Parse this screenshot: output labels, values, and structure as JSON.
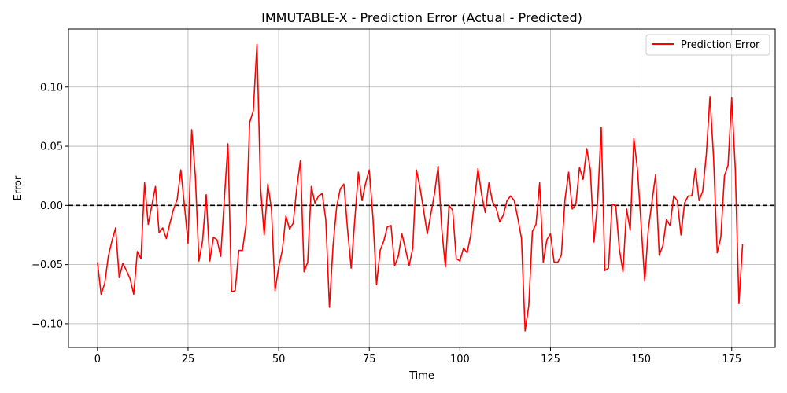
{
  "chart_data": {
    "type": "line",
    "title": "IMMUTABLE-X - Prediction Error (Actual - Predicted)",
    "xlabel": "Time",
    "ylabel": "Error",
    "xlim": [
      -8,
      187
    ],
    "ylim": [
      -0.12,
      0.149
    ],
    "x_ticks": [
      0,
      25,
      50,
      75,
      100,
      125,
      150,
      175
    ],
    "y_ticks": [
      -0.1,
      -0.05,
      0.0,
      0.05,
      0.1
    ],
    "x_tick_labels": [
      "0",
      "25",
      "50",
      "75",
      "100",
      "125",
      "150",
      "175"
    ],
    "y_tick_labels": [
      "−0.10",
      "−0.05",
      "0.00",
      "0.05",
      "0.10"
    ],
    "grid": true,
    "legend": {
      "position": "top-right"
    },
    "reference_line": {
      "y": 0,
      "style": "dashed",
      "color": "#000000"
    },
    "series": [
      {
        "name": "Prediction Error",
        "color": "#ff0000",
        "x_start": 0,
        "values": [
          -0.048,
          -0.075,
          -0.066,
          -0.043,
          -0.03,
          -0.019,
          -0.061,
          -0.049,
          -0.055,
          -0.062,
          -0.075,
          -0.039,
          -0.045,
          0.019,
          -0.016,
          0.0,
          0.016,
          -0.023,
          -0.019,
          -0.028,
          -0.015,
          -0.003,
          0.005,
          0.03,
          0.0,
          -0.032,
          0.064,
          0.025,
          -0.047,
          -0.03,
          0.009,
          -0.047,
          -0.027,
          -0.029,
          -0.043,
          0.005,
          0.052,
          -0.073,
          -0.072,
          -0.038,
          -0.038,
          -0.016,
          0.07,
          0.08,
          0.136,
          0.015,
          -0.025,
          0.018,
          -0.003,
          -0.072,
          -0.052,
          -0.038,
          -0.009,
          -0.02,
          -0.015,
          0.015,
          0.038,
          -0.056,
          -0.048,
          0.016,
          0.002,
          0.008,
          0.01,
          -0.012,
          -0.086,
          -0.034,
          -0.001,
          0.014,
          0.018,
          -0.02,
          -0.053,
          -0.012,
          0.028,
          0.004,
          0.019,
          0.03,
          -0.01,
          -0.067,
          -0.038,
          -0.03,
          -0.018,
          -0.017,
          -0.051,
          -0.043,
          -0.024,
          -0.037,
          -0.051,
          -0.036,
          0.03,
          0.015,
          -0.004,
          -0.024,
          -0.007,
          0.01,
          0.033,
          -0.02,
          -0.052,
          0.0,
          -0.004,
          -0.045,
          -0.047,
          -0.036,
          -0.04,
          -0.025,
          0.003,
          0.031,
          0.009,
          -0.006,
          0.019,
          0.003,
          -0.002,
          -0.014,
          -0.008,
          0.004,
          0.008,
          0.004,
          -0.011,
          -0.028,
          -0.106,
          -0.085,
          -0.022,
          -0.016,
          0.019,
          -0.048,
          -0.029,
          -0.024,
          -0.048,
          -0.048,
          -0.042,
          0.005,
          0.028,
          -0.003,
          0.001,
          0.032,
          0.022,
          0.048,
          0.03,
          -0.031,
          0.003,
          0.066,
          -0.055,
          -0.053,
          0.001,
          0.0,
          -0.037,
          -0.056,
          -0.003,
          -0.021,
          0.057,
          0.03,
          -0.016,
          -0.064,
          -0.02,
          0.003,
          0.026,
          -0.042,
          -0.034,
          -0.012,
          -0.017,
          0.008,
          0.004,
          -0.025,
          0.002,
          0.008,
          0.008,
          0.031,
          0.004,
          0.012,
          0.043,
          0.092,
          0.04,
          -0.04,
          -0.027,
          0.025,
          0.034,
          0.091,
          0.03,
          -0.083,
          -0.033
        ]
      }
    ]
  }
}
